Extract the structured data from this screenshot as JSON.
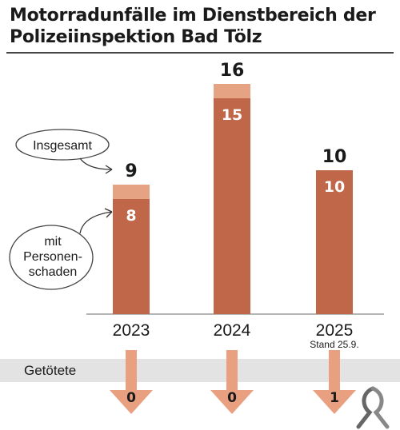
{
  "title_lines": [
    "Motorradunfälle im Dienstbereich der",
    "Polizeiinspektion Bad Tölz"
  ],
  "legend": {
    "total_label": "Insgesamt",
    "injury_label_lines": [
      "mit",
      "Personen-",
      "schaden"
    ]
  },
  "band_label": "Getötete",
  "colors": {
    "total": "#e6a383",
    "injury": "#bf6748",
    "arrow": "#e8a080",
    "band": "#e3e3e3"
  },
  "icons": {
    "ribbon": "awareness-ribbon-icon"
  },
  "chart_data": {
    "type": "bar",
    "title": "Motorradunfälle im Dienstbereich der Polizeiinspektion Bad Tölz",
    "categories": [
      "2023",
      "2024",
      "2025"
    ],
    "category_notes": [
      "",
      "",
      "Stand 25.9."
    ],
    "series": [
      {
        "name": "Insgesamt",
        "values": [
          9,
          16,
          10
        ]
      },
      {
        "name": "mit Personenschaden",
        "values": [
          8,
          15,
          10
        ]
      },
      {
        "name": "Getötete",
        "values": [
          0,
          0,
          1
        ]
      }
    ],
    "ylim": [
      0,
      16
    ],
    "grid": false
  }
}
